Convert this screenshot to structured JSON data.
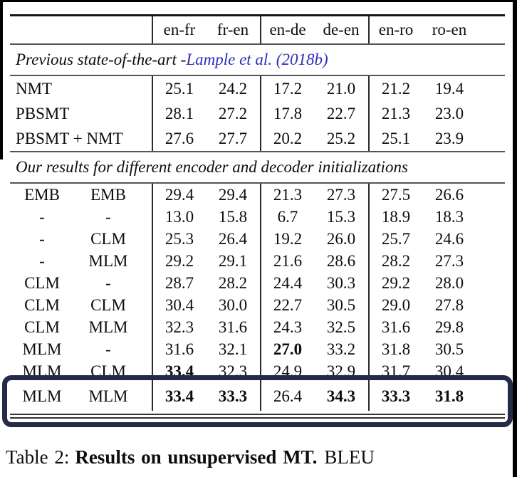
{
  "table": {
    "column_headers": [
      "en-fr",
      "fr-en",
      "en-de",
      "de-en",
      "en-ro",
      "ro-en"
    ],
    "section_sota": {
      "prefix": "Previous state-of-the-art - ",
      "citation": "Lample et al. (2018b)"
    },
    "sota_rows": [
      {
        "label": "NMT",
        "values": [
          "25.1",
          "24.2",
          "17.2",
          "21.0",
          "21.2",
          "19.4"
        ],
        "bold": [
          0,
          0,
          0,
          0,
          0,
          0
        ]
      },
      {
        "label": "PBSMT",
        "values": [
          "28.1",
          "27.2",
          "17.8",
          "22.7",
          "21.3",
          "23.0"
        ],
        "bold": [
          0,
          0,
          0,
          0,
          0,
          0
        ]
      },
      {
        "label": "PBSMT + NMT",
        "values": [
          "27.6",
          "27.7",
          "20.2",
          "25.2",
          "25.1",
          "23.9"
        ],
        "bold": [
          0,
          0,
          0,
          0,
          0,
          0
        ]
      }
    ],
    "section_ours": "Our results for different encoder and decoder initializations",
    "init_rows": [
      {
        "enc": "EMB",
        "dec": "EMB",
        "values": [
          "29.4",
          "29.4",
          "21.3",
          "27.3",
          "27.5",
          "26.6"
        ],
        "bold": [
          0,
          0,
          0,
          0,
          0,
          0
        ],
        "highlighted": false
      },
      {
        "enc": "-",
        "dec": "-",
        "values": [
          "13.0",
          "15.8",
          "6.7",
          "15.3",
          "18.9",
          "18.3"
        ],
        "bold": [
          0,
          0,
          0,
          0,
          0,
          0
        ],
        "highlighted": false
      },
      {
        "enc": "-",
        "dec": "CLM",
        "values": [
          "25.3",
          "26.4",
          "19.2",
          "26.0",
          "25.7",
          "24.6"
        ],
        "bold": [
          0,
          0,
          0,
          0,
          0,
          0
        ],
        "highlighted": false
      },
      {
        "enc": "-",
        "dec": "MLM",
        "values": [
          "29.2",
          "29.1",
          "21.6",
          "28.6",
          "28.2",
          "27.3"
        ],
        "bold": [
          0,
          0,
          0,
          0,
          0,
          0
        ],
        "highlighted": false
      },
      {
        "enc": "CLM",
        "dec": "-",
        "values": [
          "28.7",
          "28.2",
          "24.4",
          "30.3",
          "29.2",
          "28.0"
        ],
        "bold": [
          0,
          0,
          0,
          0,
          0,
          0
        ],
        "highlighted": false
      },
      {
        "enc": "CLM",
        "dec": "CLM",
        "values": [
          "30.4",
          "30.0",
          "22.7",
          "30.5",
          "29.0",
          "27.8"
        ],
        "bold": [
          0,
          0,
          0,
          0,
          0,
          0
        ],
        "highlighted": false
      },
      {
        "enc": "CLM",
        "dec": "MLM",
        "values": [
          "32.3",
          "31.6",
          "24.3",
          "32.5",
          "31.6",
          "29.8"
        ],
        "bold": [
          0,
          0,
          0,
          0,
          0,
          0
        ],
        "highlighted": false
      },
      {
        "enc": "MLM",
        "dec": "-",
        "values": [
          "31.6",
          "32.1",
          "27.0",
          "33.2",
          "31.8",
          "30.5"
        ],
        "bold": [
          0,
          0,
          1,
          0,
          0,
          0
        ],
        "highlighted": false
      },
      {
        "enc": "MLM",
        "dec": "CLM",
        "values": [
          "33.4",
          "32.3",
          "24.9",
          "32.9",
          "31.7",
          "30.4"
        ],
        "bold": [
          1,
          0,
          0,
          0,
          0,
          0
        ],
        "highlighted": false
      },
      {
        "enc": "MLM",
        "dec": "MLM",
        "values": [
          "33.4",
          "33.3",
          "26.4",
          "34.3",
          "33.3",
          "31.8"
        ],
        "bold": [
          1,
          1,
          0,
          1,
          1,
          1
        ],
        "highlighted": true
      }
    ]
  },
  "caption": {
    "label": "Table 2:",
    "bold_text": "Results on unsupervised MT.",
    "suffix": "BLEU"
  },
  "colors": {
    "citation_link": "#2d2db8",
    "highlight_box": "#232b49"
  }
}
